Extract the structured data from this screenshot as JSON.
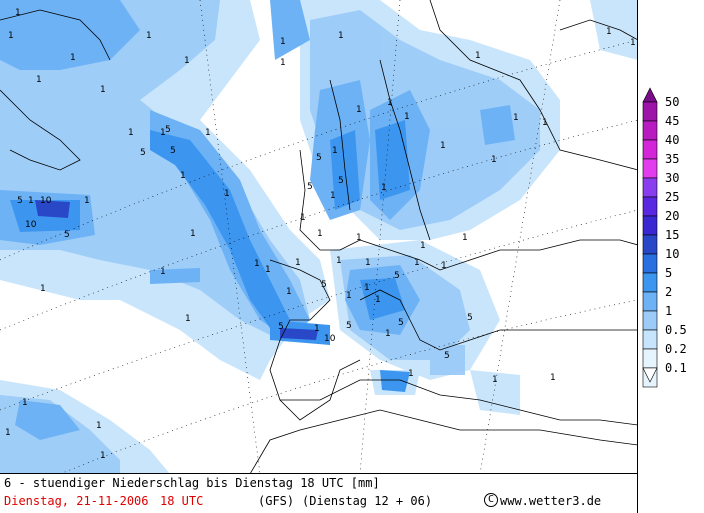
{
  "map": {
    "description_labels": [
      "1",
      "1",
      "1",
      "1",
      "1",
      "5",
      "1",
      "1",
      "1",
      "5",
      "1",
      "10",
      "10",
      "5",
      "5",
      "1",
      "1",
      "1",
      "1",
      "1",
      "1",
      "1",
      "5",
      "5",
      "10",
      "1",
      "5",
      "1",
      "5",
      "1",
      "1",
      "1",
      "5",
      "1",
      "5",
      "5",
      "1",
      "1",
      "1",
      "1",
      "1",
      "1",
      "1",
      "1",
      "1",
      "5",
      "1",
      "1",
      "1",
      "5",
      "1",
      "1",
      "1",
      "1",
      "1",
      "1",
      "1",
      "1",
      "1",
      "1",
      "5",
      "1",
      "1",
      "1",
      "1",
      "1",
      "1",
      "1",
      "1",
      "1",
      "1",
      "1",
      "1",
      "1",
      "5",
      "1",
      "1"
    ]
  },
  "legend": {
    "levels": [
      "50",
      "45",
      "40",
      "35",
      "30",
      "25",
      "20",
      "15",
      "10",
      "5",
      "2",
      "1",
      "0.5",
      "0.2",
      "0.1"
    ],
    "colors": [
      "#7a0c8a",
      "#9c14a8",
      "#b81cc0",
      "#d226d8",
      "#e23cef",
      "#8a3cef",
      "#5a28e0",
      "#3a28d2",
      "#2848c8",
      "#2870e0",
      "#3c96f0",
      "#6eb2f6",
      "#9ccbf8",
      "#c6e4fb",
      "#e6f4fd"
    ]
  },
  "caption": {
    "line1": "6 - stuendiger Niederschlag bis Dienstag 18 UTC [mm]",
    "date": "Dienstag, 21-11-2006",
    "time": "18 UTC",
    "model": "(GFS)",
    "run": "(Dienstag 12 + 06)",
    "credit": "www.wetter3.de",
    "copyright_symbol": "C"
  },
  "colors": {
    "date_red": "#e00000",
    "land": "#ffffff",
    "sea": "#ffffff"
  }
}
